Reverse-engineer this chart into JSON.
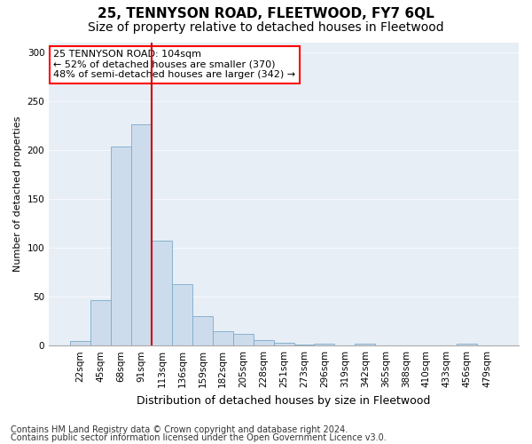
{
  "title": "25, TENNYSON ROAD, FLEETWOOD, FY7 6QL",
  "subtitle": "Size of property relative to detached houses in Fleetwood",
  "xlabel": "Distribution of detached houses by size in Fleetwood",
  "ylabel": "Number of detached properties",
  "bar_values": [
    5,
    46,
    203,
    226,
    107,
    63,
    30,
    15,
    12,
    6,
    3,
    1,
    2,
    0,
    2,
    0,
    0,
    0,
    0,
    2,
    0
  ],
  "bar_labels": [
    "22sqm",
    "45sqm",
    "68sqm",
    "91sqm",
    "113sqm",
    "136sqm",
    "159sqm",
    "182sqm",
    "205sqm",
    "228sqm",
    "251sqm",
    "273sqm",
    "296sqm",
    "319sqm",
    "342sqm",
    "365sqm",
    "388sqm",
    "410sqm",
    "433sqm",
    "456sqm",
    "479sqm"
  ],
  "bar_color": "#cddcec",
  "bar_edge_color": "#7aaaca",
  "annotation_box_text": "25 TENNYSON ROAD: 104sqm\n← 52% of detached houses are smaller (370)\n48% of semi-detached houses are larger (342) →",
  "annotation_box_color": "white",
  "annotation_box_edge_color": "red",
  "vline_color": "#cc0000",
  "vline_x_bar_index": 3,
  "ylim": [
    0,
    310
  ],
  "yticks": [
    0,
    50,
    100,
    150,
    200,
    250,
    300
  ],
  "footer_line1": "Contains HM Land Registry data © Crown copyright and database right 2024.",
  "footer_line2": "Contains public sector information licensed under the Open Government Licence v3.0.",
  "background_color": "#e8eef6",
  "grid_color": "#f8f8ff",
  "title_fontsize": 11,
  "subtitle_fontsize": 10,
  "xlabel_fontsize": 9,
  "ylabel_fontsize": 8,
  "tick_fontsize": 7.5,
  "footer_fontsize": 7
}
